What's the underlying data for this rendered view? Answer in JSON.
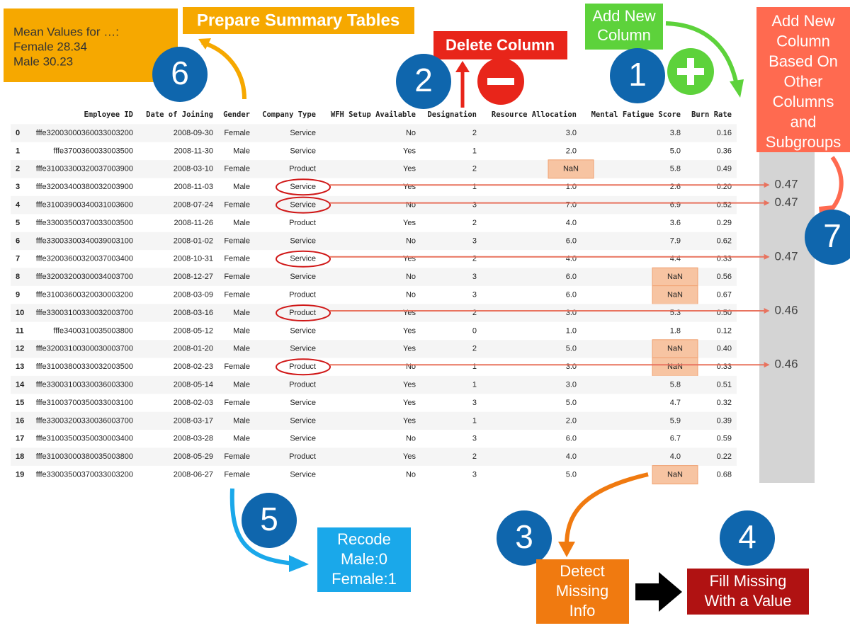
{
  "summary": {
    "lines": [
      "Mean Values for …:",
      "Female 28.34",
      "Male 30.23"
    ],
    "title": "Prepare Summary Tables",
    "badge": "6"
  },
  "delete_column": {
    "label": "Delete Column",
    "badge": "2"
  },
  "add_column": {
    "lines": [
      "Add New",
      "Column"
    ],
    "badge": "1"
  },
  "add_based": {
    "lines": [
      "Add New",
      "Column",
      "Based On",
      "Other",
      "Columns",
      "and",
      "Subgroups"
    ],
    "badge": "7"
  },
  "recode": {
    "lines": [
      "Recode",
      "Male:0",
      "Female:1"
    ],
    "badge": "5"
  },
  "detect": {
    "lines": [
      "Detect",
      "Missing",
      "Info"
    ],
    "badge": "3"
  },
  "fill": {
    "lines": [
      "Fill Missing",
      "With a Value"
    ],
    "badge": "4"
  },
  "table": {
    "columns": [
      "Employee ID",
      "Date of Joining",
      "Gender",
      "Company Type",
      "WFH Setup Available",
      "Designation",
      "Resource Allocation",
      "Mental Fatigue Score",
      "Burn Rate"
    ],
    "rows": [
      [
        "0",
        "fffe32003000360033003200",
        "2008-09-30",
        "Female",
        "Service",
        "No",
        "2",
        "3.0",
        "3.8",
        "0.16"
      ],
      [
        "1",
        "fffe3700360033003500",
        "2008-11-30",
        "Male",
        "Service",
        "Yes",
        "1",
        "2.0",
        "5.0",
        "0.36"
      ],
      [
        "2",
        "fffe31003300320037003900",
        "2008-03-10",
        "Female",
        "Product",
        "Yes",
        "2",
        "NaN",
        "5.8",
        "0.49"
      ],
      [
        "3",
        "fffe32003400380032003900",
        "2008-11-03",
        "Male",
        "Service",
        "Yes",
        "1",
        "1.0",
        "2.6",
        "0.20"
      ],
      [
        "4",
        "fffe31003900340031003600",
        "2008-07-24",
        "Female",
        "Service",
        "No",
        "3",
        "7.0",
        "6.9",
        "0.52"
      ],
      [
        "5",
        "fffe33003500370033003500",
        "2008-11-26",
        "Male",
        "Product",
        "Yes",
        "2",
        "4.0",
        "3.6",
        "0.29"
      ],
      [
        "6",
        "fffe33003300340039003100",
        "2008-01-02",
        "Female",
        "Service",
        "No",
        "3",
        "6.0",
        "7.9",
        "0.62"
      ],
      [
        "7",
        "fffe32003600320037003400",
        "2008-10-31",
        "Female",
        "Service",
        "Yes",
        "2",
        "4.0",
        "4.4",
        "0.33"
      ],
      [
        "8",
        "fffe32003200300034003700",
        "2008-12-27",
        "Female",
        "Service",
        "No",
        "3",
        "6.0",
        "NaN",
        "0.56"
      ],
      [
        "9",
        "fffe31003600320030003200",
        "2008-03-09",
        "Female",
        "Product",
        "No",
        "3",
        "6.0",
        "NaN",
        "0.67"
      ],
      [
        "10",
        "fffe33003100330032003700",
        "2008-03-16",
        "Male",
        "Product",
        "Yes",
        "2",
        "3.0",
        "5.3",
        "0.50"
      ],
      [
        "11",
        "fffe3400310035003800",
        "2008-05-12",
        "Male",
        "Service",
        "Yes",
        "0",
        "1.0",
        "1.8",
        "0.12"
      ],
      [
        "12",
        "fffe32003100300030003700",
        "2008-01-20",
        "Male",
        "Service",
        "Yes",
        "2",
        "5.0",
        "NaN",
        "0.40"
      ],
      [
        "13",
        "fffe31003800330032003500",
        "2008-02-23",
        "Female",
        "Product",
        "No",
        "1",
        "3.0",
        "NaN",
        "0.33"
      ],
      [
        "14",
        "fffe33003100330036003300",
        "2008-05-14",
        "Male",
        "Product",
        "Yes",
        "1",
        "3.0",
        "5.8",
        "0.51"
      ],
      [
        "15",
        "fffe31003700350033003100",
        "2008-02-03",
        "Female",
        "Service",
        "Yes",
        "3",
        "5.0",
        "4.7",
        "0.32"
      ],
      [
        "16",
        "fffe33003200330036003700",
        "2008-03-17",
        "Male",
        "Service",
        "Yes",
        "1",
        "2.0",
        "5.9",
        "0.39"
      ],
      [
        "17",
        "fffe31003500350030003400",
        "2008-03-28",
        "Male",
        "Service",
        "No",
        "3",
        "6.0",
        "6.7",
        "0.59"
      ],
      [
        "18",
        "fffe31003000380035003800",
        "2008-05-29",
        "Female",
        "Product",
        "Yes",
        "2",
        "4.0",
        "4.0",
        "0.22"
      ],
      [
        "19",
        "fffe33003500370033003200",
        "2008-06-27",
        "Female",
        "Service",
        "No",
        "3",
        "5.0",
        "NaN",
        "0.68"
      ]
    ],
    "new_column": [
      null,
      null,
      null,
      "0.47",
      "0.47",
      null,
      null,
      "0.47",
      null,
      null,
      "0.46",
      null,
      null,
      "0.46",
      null,
      null,
      null,
      null,
      null,
      null
    ]
  }
}
